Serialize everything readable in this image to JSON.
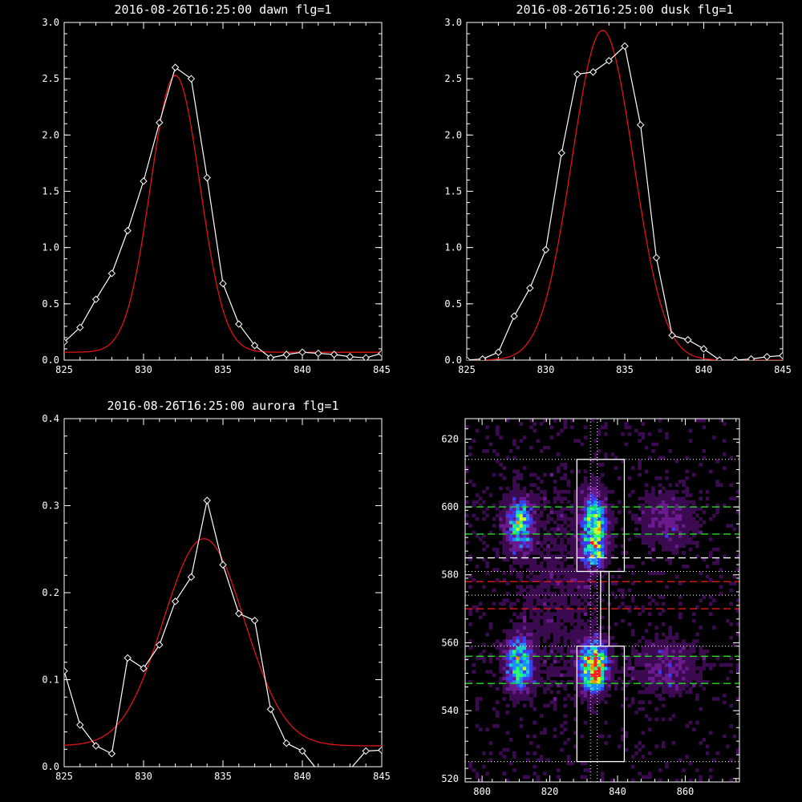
{
  "chart_data": [
    {
      "type": "line",
      "title": "2016-08-26T16:25:00 dawn flg=1",
      "xlim": [
        825,
        845
      ],
      "ylim": [
        0,
        3
      ],
      "x_ticks": [
        "825",
        "830",
        "835",
        "840",
        "845"
      ],
      "y_ticks": [
        "0.0",
        "0.5",
        "1.0",
        "1.5",
        "2.0",
        "2.5",
        "3.0"
      ],
      "series": [
        {
          "color": "#ffffff",
          "marker": "diamond",
          "x": [
            825,
            826,
            827,
            828,
            829,
            830,
            831,
            832,
            833,
            834,
            835,
            836,
            837,
            838,
            839,
            840,
            841,
            842,
            843,
            844,
            845
          ],
          "values": [
            0.16,
            0.29,
            0.54,
            0.77,
            1.15,
            1.59,
            2.11,
            2.6,
            2.5,
            1.62,
            0.68,
            0.32,
            0.13,
            0.02,
            0.05,
            0.07,
            0.06,
            0.05,
            0.03,
            0.02,
            0.06
          ]
        },
        {
          "color": "#e01414",
          "marker": "none",
          "kind": "gaussian-fit",
          "fit": {
            "amp": 2.46,
            "center": 832.0,
            "sigma": 1.55,
            "offset": 0.07
          }
        }
      ]
    },
    {
      "type": "line",
      "title": "2016-08-26T16:25:00 dusk flg=1",
      "xlim": [
        825,
        845
      ],
      "ylim": [
        0,
        3
      ],
      "x_ticks": [
        "825",
        "830",
        "835",
        "840",
        "845"
      ],
      "y_ticks": [
        "0.0",
        "0.5",
        "1.0",
        "1.5",
        "2.0",
        "2.5",
        "3.0"
      ],
      "series": [
        {
          "color": "#ffffff",
          "marker": "diamond",
          "x": [
            825,
            826,
            827,
            828,
            829,
            830,
            831,
            832,
            833,
            834,
            835,
            836,
            837,
            838,
            839,
            840,
            841,
            842,
            843,
            844,
            845
          ],
          "values": [
            0.0,
            0.01,
            0.07,
            0.39,
            0.64,
            0.98,
            1.84,
            2.54,
            2.56,
            2.66,
            2.79,
            2.09,
            0.91,
            0.22,
            0.18,
            0.1,
            0.0,
            0.0,
            0.01,
            0.03,
            0.04
          ]
        },
        {
          "color": "#e01414",
          "marker": "none",
          "kind": "gaussian-fit",
          "fit": {
            "amp": 2.93,
            "center": 833.6,
            "sigma": 1.95,
            "offset": 0.0
          }
        }
      ]
    },
    {
      "type": "line",
      "title": "2016-08-26T16:25:00 aurora flg=1",
      "xlim": [
        825,
        845
      ],
      "ylim": [
        0,
        0.4
      ],
      "x_ticks": [
        "825",
        "830",
        "835",
        "840",
        "845"
      ],
      "y_ticks": [
        "0.0",
        "0.1",
        "0.2",
        "0.3",
        "0.4"
      ],
      "series": [
        {
          "color": "#ffffff",
          "marker": "diamond",
          "x": [
            825,
            826,
            827,
            828,
            829,
            830,
            831,
            832,
            833,
            834,
            835,
            836,
            837,
            838,
            839,
            840,
            841,
            842,
            843,
            844,
            845
          ],
          "values": [
            0.11,
            0.048,
            0.024,
            0.015,
            0.125,
            0.113,
            0.14,
            0.19,
            0.218,
            0.306,
            0.232,
            0.176,
            0.168,
            0.066,
            0.027,
            0.018,
            -0.005,
            -0.01,
            -0.003,
            0.018,
            0.019
          ]
        },
        {
          "color": "#e01414",
          "marker": "none",
          "kind": "gaussian-fit",
          "fit": {
            "amp": 0.238,
            "center": 833.8,
            "sigma": 2.55,
            "offset": 0.024
          }
        }
      ]
    },
    {
      "type": "heatmap",
      "xlim": [
        795,
        876
      ],
      "ylim": [
        519,
        626
      ],
      "x_ticks": [
        "800",
        "820",
        "840",
        "860"
      ],
      "y_ticks": [
        "520",
        "540",
        "560",
        "580",
        "600",
        "620"
      ],
      "colorscale": [
        "#000000",
        "#3c0a50",
        "#6a1a8e",
        "#3a3cf0",
        "#1e8cff",
        "#14d2c8",
        "#28ff6e",
        "#c8ff1e",
        "#ff9600",
        "#ff1e1e"
      ],
      "blobs": [
        {
          "cx": 811,
          "cy": 595,
          "sx": 2.5,
          "sy": 5,
          "amp": 0.55
        },
        {
          "cx": 833,
          "cy": 594,
          "sx": 2.3,
          "sy": 6,
          "amp": 0.7
        },
        {
          "cx": 833,
          "cy": 586,
          "sx": 2,
          "sy": 2.5,
          "amp": 0.35
        },
        {
          "cx": 811,
          "cy": 554,
          "sx": 2.5,
          "sy": 5,
          "amp": 0.65
        },
        {
          "cx": 833,
          "cy": 553,
          "sx": 2.5,
          "sy": 4.5,
          "amp": 1.0
        },
        {
          "cx": 855,
          "cy": 596,
          "sx": 6,
          "sy": 6,
          "amp": 0.18
        },
        {
          "cx": 855,
          "cy": 553,
          "sx": 7,
          "sy": 6,
          "amp": 0.18
        },
        {
          "cx": 822,
          "cy": 575,
          "sx": 12,
          "sy": 30,
          "amp": 0.08
        }
      ],
      "boxes": [
        {
          "x0": 828,
          "x1": 842,
          "y0": 581,
          "y1": 614
        },
        {
          "x0": 828,
          "x1": 842,
          "y0": 525,
          "y1": 559
        },
        {
          "x0": 835,
          "x1": 837.5,
          "y0": 559,
          "y1": 581
        }
      ],
      "hlines": [
        {
          "y": 614,
          "color": "#ffffff",
          "style": "dotted"
        },
        {
          "y": 600,
          "color": "#22dd22",
          "style": "dashed"
        },
        {
          "y": 592,
          "color": "#22dd22",
          "style": "dashed"
        },
        {
          "y": 585,
          "color": "#ffffff",
          "style": "dashed"
        },
        {
          "y": 581,
          "color": "#ffffff",
          "style": "dotted"
        },
        {
          "y": 578,
          "color": "#dd1e1e",
          "style": "dashed"
        },
        {
          "y": 574,
          "color": "#ffffff",
          "style": "dotted"
        },
        {
          "y": 570,
          "color": "#dd1e1e",
          "style": "dashed"
        },
        {
          "y": 559,
          "color": "#ffffff",
          "style": "dotted"
        },
        {
          "y": 556,
          "color": "#22dd22",
          "style": "dashed"
        },
        {
          "y": 548,
          "color": "#22dd22",
          "style": "dashed"
        },
        {
          "y": 525,
          "color": "#ffffff",
          "style": "dotted"
        }
      ],
      "vlines": [
        {
          "x": 832,
          "color": "#ffffff",
          "style": "dotted"
        },
        {
          "x": 834,
          "color": "#ffffff",
          "style": "dotted"
        }
      ]
    }
  ]
}
